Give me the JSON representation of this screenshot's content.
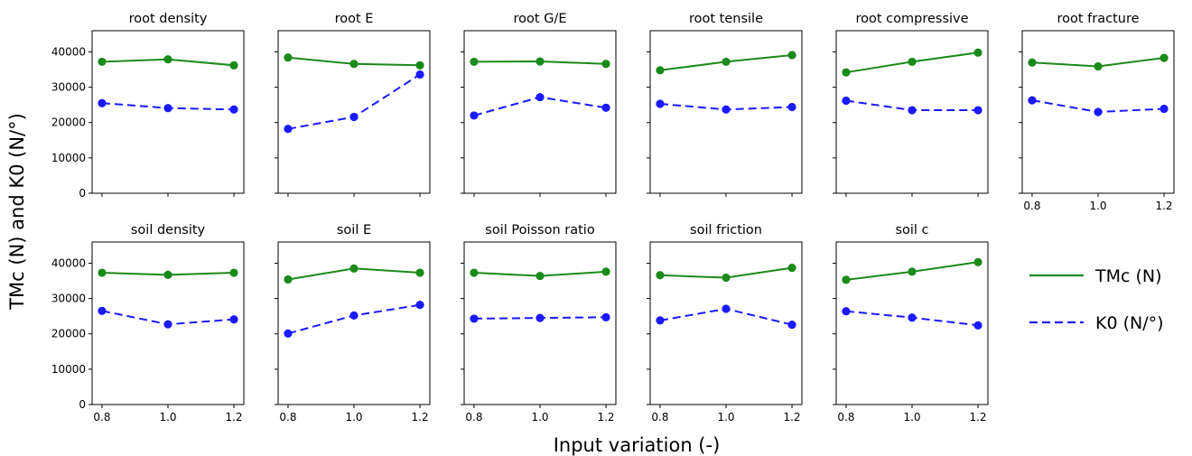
{
  "chart_data": {
    "type": "line",
    "xlabel": "Input variation (-)",
    "ylabel": "TMc (N) and K0 (N/°)",
    "x": [
      0.8,
      1.0,
      1.2
    ],
    "x_ticks": [
      "0.8",
      "1.0",
      "1.2"
    ],
    "xlim": [
      0.77,
      1.23
    ],
    "ylim": [
      0,
      46000
    ],
    "y_ticks": [
      "0",
      "10000",
      "20000",
      "30000",
      "40000"
    ],
    "grid": false,
    "legend": {
      "placement": "right",
      "entries": [
        {
          "label": "TMc (N)",
          "color": "#1a8a1a",
          "style": "solid"
        },
        {
          "label": "K0 (N/°)",
          "color": "#1a1aff",
          "style": "dashed"
        }
      ]
    },
    "panels": [
      {
        "title": "root density",
        "series": [
          {
            "values": [
              37200,
              37900,
              36200
            ]
          },
          {
            "values": [
              25500,
              24100,
              23700
            ]
          }
        ]
      },
      {
        "title": "root E",
        "series": [
          {
            "values": [
              38400,
              36600,
              36200
            ]
          },
          {
            "values": [
              18200,
              21600,
              33600
            ]
          }
        ]
      },
      {
        "title": "root G/E",
        "series": [
          {
            "values": [
              37200,
              37300,
              36600
            ]
          },
          {
            "values": [
              22000,
              27200,
              24200
            ]
          }
        ]
      },
      {
        "title": "root tensile",
        "series": [
          {
            "values": [
              34800,
              37200,
              39100
            ]
          },
          {
            "values": [
              25300,
              23700,
              24400
            ]
          }
        ]
      },
      {
        "title": "root compressive",
        "series": [
          {
            "values": [
              34200,
              37200,
              39800
            ]
          },
          {
            "values": [
              26200,
              23500,
              23500
            ]
          }
        ]
      },
      {
        "title": "root fracture",
        "series": [
          {
            "values": [
              37000,
              35900,
              38300
            ]
          },
          {
            "values": [
              26300,
              23000,
              23900
            ]
          }
        ]
      },
      {
        "title": "soil density",
        "series": [
          {
            "values": [
              37300,
              36700,
              37300
            ]
          },
          {
            "values": [
              26500,
              22700,
              24100
            ]
          }
        ]
      },
      {
        "title": "soil E",
        "series": [
          {
            "values": [
              35400,
              38500,
              37300
            ]
          },
          {
            "values": [
              20100,
              25200,
              28200
            ]
          }
        ]
      },
      {
        "title": "soil Poisson ratio",
        "series": [
          {
            "values": [
              37300,
              36400,
              37600
            ]
          },
          {
            "values": [
              24300,
              24500,
              24700
            ]
          }
        ]
      },
      {
        "title": "soil friction",
        "series": [
          {
            "values": [
              36600,
              35900,
              38700
            ]
          },
          {
            "values": [
              23800,
              27100,
              22600
            ]
          }
        ]
      },
      {
        "title": "soil c",
        "series": [
          {
            "values": [
              35300,
              37600,
              40300
            ]
          },
          {
            "values": [
              26400,
              24600,
              22400
            ]
          }
        ]
      }
    ]
  }
}
